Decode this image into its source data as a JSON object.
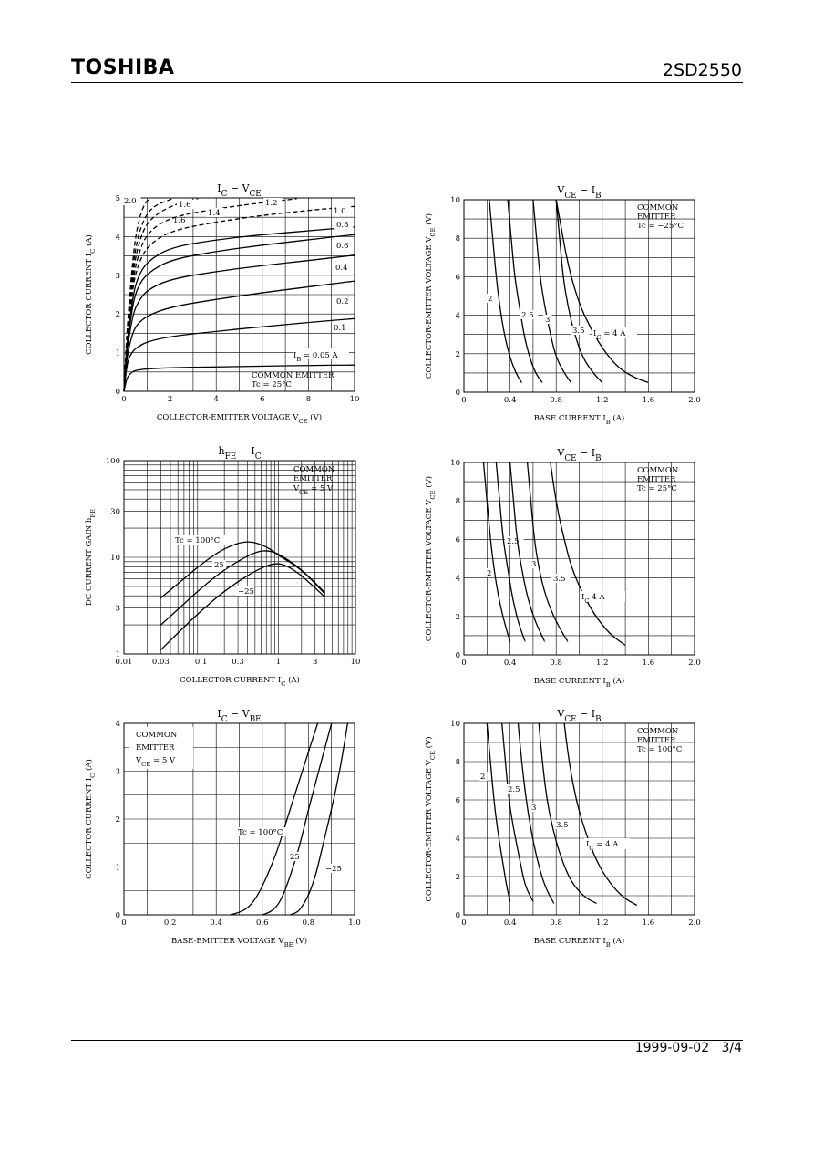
{
  "header": {
    "brand": "TOSHIBA",
    "part_number": "2SD2550"
  },
  "footer": {
    "date": "1999-09-02",
    "page": "3/4"
  },
  "chart_data": [
    {
      "id": "ic_vce",
      "type": "line",
      "title": {
        "main": "I",
        "sub": "C",
        "sep": " − ",
        "main2": "V",
        "sub2": "CE"
      },
      "xlabel": "COLLECTOR-EMITTER VOLTAGE   V",
      "xlabel_sub": "CE",
      "xlabel_unit": "(V)",
      "ylabel": "COLLECTOR CURRENT   I",
      "ylabel_sub": "C",
      "ylabel_unit": "(A)",
      "xlim": [
        0,
        10
      ],
      "ylim": [
        0,
        5
      ],
      "grid": true,
      "xticks": [
        0,
        2,
        4,
        6,
        8,
        10
      ],
      "yticks": [
        0,
        1,
        2,
        3,
        4,
        5
      ],
      "annotations": [
        "COMMON EMITTER",
        "Tc = 25°C"
      ],
      "ib_note": "I",
      "ib_note_sub": "B",
      "ib_note_rest": " = 0.05 A",
      "series": [
        {
          "name": "0.05",
          "x": [
            0,
            0.1,
            0.2,
            0.4,
            0.6,
            1,
            2,
            4,
            6,
            8,
            10
          ],
          "y": [
            0,
            0.28,
            0.42,
            0.52,
            0.55,
            0.58,
            0.61,
            0.63,
            0.65,
            0.67,
            0.68
          ]
        },
        {
          "name": "0.1",
          "x": [
            0,
            0.1,
            0.2,
            0.4,
            0.6,
            1,
            2,
            4,
            6,
            8,
            10
          ],
          "y": [
            0,
            0.55,
            0.85,
            1.05,
            1.15,
            1.28,
            1.42,
            1.55,
            1.67,
            1.78,
            1.88
          ]
        },
        {
          "name": "0.2",
          "x": [
            0,
            0.1,
            0.2,
            0.4,
            0.6,
            1,
            2,
            4,
            6,
            8,
            10
          ],
          "y": [
            0,
            0.7,
            1.1,
            1.55,
            1.75,
            1.95,
            2.18,
            2.38,
            2.55,
            2.7,
            2.85
          ]
        },
        {
          "name": "0.4",
          "x": [
            0,
            0.1,
            0.2,
            0.4,
            0.6,
            1,
            2,
            4,
            6,
            8,
            10
          ],
          "y": [
            0,
            0.85,
            1.35,
            2.0,
            2.3,
            2.62,
            2.9,
            3.1,
            3.25,
            3.38,
            3.52
          ]
        },
        {
          "name": "0.6",
          "x": [
            0,
            0.1,
            0.2,
            0.4,
            0.6,
            1,
            2,
            4,
            6,
            8,
            10
          ],
          "y": [
            0,
            0.95,
            1.5,
            2.3,
            2.7,
            3.05,
            3.4,
            3.62,
            3.78,
            3.92,
            4.05
          ]
        },
        {
          "name": "0.8",
          "x": [
            0,
            0.1,
            0.2,
            0.4,
            0.6,
            1,
            2,
            4,
            6,
            8,
            10
          ],
          "y": [
            0,
            1.0,
            1.6,
            2.5,
            2.95,
            3.35,
            3.72,
            3.92,
            4.05,
            4.15,
            4.25
          ]
        },
        {
          "name": "1.0",
          "dashed": true,
          "x": [
            0,
            0.1,
            0.2,
            0.4,
            0.6,
            1,
            2,
            4,
            6,
            8,
            10
          ],
          "y": [
            0,
            1.05,
            1.7,
            2.75,
            3.25,
            3.75,
            4.15,
            4.38,
            4.55,
            4.68,
            4.78
          ]
        },
        {
          "name": "1.2",
          "dashed": true,
          "x": [
            0,
            0.1,
            0.2,
            0.4,
            0.6,
            1,
            2,
            4,
            6,
            7.5
          ],
          "y": [
            0,
            1.1,
            1.8,
            2.9,
            3.5,
            4.1,
            4.5,
            4.72,
            4.88,
            4.98
          ]
        },
        {
          "name": "1.4",
          "dashed": true,
          "x": [
            0,
            0.1,
            0.2,
            0.4,
            0.6,
            1,
            2,
            3.2
          ],
          "y": [
            0,
            1.15,
            1.9,
            3.1,
            3.75,
            4.4,
            4.8,
            4.98
          ]
        },
        {
          "name": "1.6",
          "dashed": true,
          "x": [
            0,
            0.1,
            0.2,
            0.4,
            0.6,
            0.9,
            1.3,
            2.1
          ],
          "y": [
            0,
            1.2,
            2.0,
            3.3,
            4.0,
            4.5,
            4.8,
            4.98
          ]
        },
        {
          "name": "2.0",
          "dashed": true,
          "x": [
            0,
            0.1,
            0.2,
            0.35,
            0.5,
            0.7,
            0.9,
            1.1
          ],
          "y": [
            0,
            1.25,
            2.1,
            3.2,
            4.0,
            4.55,
            4.85,
            4.98
          ]
        }
      ]
    },
    {
      "id": "vce_ib_m25",
      "type": "line",
      "title": {
        "main": "V",
        "sub": "CE",
        "sep": " − ",
        "main2": "I",
        "sub2": "B"
      },
      "xlabel": "BASE CURRENT   I",
      "xlabel_sub": "B",
      "xlabel_unit": "(A)",
      "ylabel": "COLLECTOR-EMITTER VOLTAGE   V",
      "ylabel_sub": "CE",
      "ylabel_unit": "(V)",
      "xlim": [
        0,
        2.0
      ],
      "ylim": [
        0,
        10
      ],
      "grid": true,
      "xticks": [
        0,
        0.4,
        0.8,
        1.2,
        1.6,
        2.0
      ],
      "yticks": [
        0,
        2,
        4,
        6,
        8,
        10
      ],
      "annotations": [
        "COMMON",
        "EMITTER",
        "Tc = −25°C"
      ],
      "ic_note": "I",
      "ic_note_sub": "C",
      "ic_note_rest": " = 4 A",
      "series": [
        {
          "name": "2",
          "x": [
            0.22,
            0.25,
            0.28,
            0.31,
            0.35,
            0.4,
            0.45,
            0.5
          ],
          "y": [
            10,
            8,
            6,
            4.5,
            3,
            1.8,
            1.0,
            0.5
          ]
        },
        {
          "name": "2.5",
          "x": [
            0.38,
            0.41,
            0.44,
            0.48,
            0.52,
            0.57,
            0.62,
            0.68
          ],
          "y": [
            10,
            8,
            6,
            4.5,
            3,
            1.8,
            1.0,
            0.5
          ]
        },
        {
          "name": "3",
          "x": [
            0.6,
            0.63,
            0.66,
            0.7,
            0.75,
            0.8,
            0.87,
            0.93
          ],
          "y": [
            10,
            8,
            6,
            4.5,
            3,
            1.8,
            1.0,
            0.5
          ]
        },
        {
          "name": "3.5",
          "x": [
            0.8,
            0.83,
            0.86,
            0.9,
            0.96,
            1.03,
            1.12,
            1.2
          ],
          "y": [
            10,
            8,
            6,
            4.5,
            3,
            1.8,
            1.0,
            0.5
          ]
        },
        {
          "name": "4",
          "x": [
            0.8,
            0.84,
            0.88,
            0.93,
            1.0,
            1.1,
            1.22,
            1.35,
            1.5,
            1.6
          ],
          "y": [
            10,
            8.7,
            7.3,
            6,
            4.6,
            3.3,
            2.1,
            1.2,
            0.7,
            0.5
          ]
        }
      ]
    },
    {
      "id": "hfe_ic",
      "type": "line",
      "title": {
        "main": "h",
        "sub": "FE",
        "sep": " − ",
        "main2": "I",
        "sub2": "C"
      },
      "xlabel": "COLLECTOR CURRENT   I",
      "xlabel_sub": "C",
      "xlabel_unit": "(A)",
      "ylabel": "DC CURRENT GAIN   h",
      "ylabel_sub": "FE",
      "ylabel_unit": "",
      "xscale": "log",
      "yscale": "log",
      "xlim": [
        0.01,
        10
      ],
      "ylim": [
        1,
        100
      ],
      "grid": true,
      "xticks": [
        0.01,
        0.03,
        0.1,
        0.3,
        1,
        3,
        10
      ],
      "xtick_labels": [
        "0.01",
        "0.03",
        "0.1",
        "0.3",
        "1",
        "3",
        "10"
      ],
      "yticks": [
        1,
        3,
        10,
        30,
        100
      ],
      "annotations": [
        "COMMON",
        "EMITTER",
        "V",
        "CE",
        " = 5 V"
      ],
      "series": [
        {
          "name": "Tc = 100°C",
          "x": [
            0.03,
            0.06,
            0.1,
            0.2,
            0.4,
            0.7,
            1.0,
            2,
            4
          ],
          "y": [
            3.8,
            6,
            8.5,
            12.5,
            15,
            13,
            10.5,
            7.5,
            4.2
          ]
        },
        {
          "name": "25",
          "x": [
            0.03,
            0.06,
            0.1,
            0.2,
            0.5,
            0.8,
            1.2,
            2,
            4
          ],
          "y": [
            2.0,
            3.3,
            4.8,
            7.5,
            11.5,
            11.8,
            10,
            7.5,
            4.3
          ]
        },
        {
          "name": "−25",
          "x": [
            0.03,
            0.06,
            0.1,
            0.2,
            0.5,
            0.9,
            1.3,
            2,
            4
          ],
          "y": [
            1.1,
            1.9,
            2.8,
            4.5,
            7.3,
            8.8,
            8.2,
            6.5,
            3.9
          ]
        }
      ]
    },
    {
      "id": "vce_ib_25",
      "type": "line",
      "title": {
        "main": "V",
        "sub": "CE",
        "sep": " − ",
        "main2": "I",
        "sub2": "B"
      },
      "xlabel": "BASE CURRENT   I",
      "xlabel_sub": "B",
      "xlabel_unit": "(A)",
      "ylabel": "COLLECTOR-EMITTER VOLTAGE   V",
      "ylabel_sub": "CE",
      "ylabel_unit": "(V)",
      "xlim": [
        0,
        2.0
      ],
      "ylim": [
        0,
        10
      ],
      "grid": true,
      "xticks": [
        0,
        0.4,
        0.8,
        1.2,
        1.6,
        2.0
      ],
      "yticks": [
        0,
        2,
        4,
        6,
        8,
        10
      ],
      "annotations": [
        "COMMON",
        "EMITTER",
        "Tc = 25°C"
      ],
      "ic_note": "I",
      "ic_note_sub": "C",
      "ic_note_rest": "    4 A",
      "series": [
        {
          "name": "2",
          "x": [
            0.17,
            0.2,
            0.23,
            0.26,
            0.3,
            0.35,
            0.4
          ],
          "y": [
            10,
            8,
            6,
            4.5,
            3,
            1.7,
            0.7
          ]
        },
        {
          "name": "2.5",
          "x": [
            0.28,
            0.31,
            0.34,
            0.38,
            0.42,
            0.47,
            0.53
          ],
          "y": [
            10,
            8,
            6,
            4.5,
            3,
            1.7,
            0.7
          ]
        },
        {
          "name": "3",
          "x": [
            0.4,
            0.43,
            0.46,
            0.5,
            0.55,
            0.62,
            0.7
          ],
          "y": [
            10,
            8,
            6,
            4.5,
            3,
            1.7,
            0.7
          ]
        },
        {
          "name": "3.5",
          "x": [
            0.55,
            0.58,
            0.61,
            0.65,
            0.71,
            0.8,
            0.9
          ],
          "y": [
            10,
            8,
            6,
            4.5,
            3,
            1.7,
            0.7
          ]
        },
        {
          "name": "4",
          "x": [
            0.75,
            0.78,
            0.82,
            0.87,
            0.93,
            1.02,
            1.13,
            1.26,
            1.4
          ],
          "y": [
            10,
            8.7,
            7.3,
            6,
            4.6,
            3.3,
            2.1,
            1.1,
            0.5
          ]
        }
      ]
    },
    {
      "id": "ic_vbe",
      "type": "line",
      "title": {
        "main": "I",
        "sub": "C",
        "sep": " − ",
        "main2": "V",
        "sub2": "BE"
      },
      "xlabel": "BASE-EMITTER VOLTAGE   V",
      "xlabel_sub": "BE",
      "xlabel_unit": "(V)",
      "ylabel": "COLLECTOR CURRENT   I",
      "ylabel_sub": "C",
      "ylabel_unit": "(A)",
      "xlim": [
        0,
        1.0
      ],
      "ylim": [
        0,
        4
      ],
      "grid": true,
      "xticks": [
        0,
        0.2,
        0.4,
        0.6,
        0.8,
        1.0
      ],
      "yticks": [
        0,
        1,
        2,
        3,
        4
      ],
      "annotations": [
        "COMMON",
        "EMITTER",
        "V",
        "CE",
        " = 5 V"
      ],
      "series": [
        {
          "name": "Tc = 100°C",
          "x": [
            0.46,
            0.5,
            0.54,
            0.58,
            0.62,
            0.67,
            0.72,
            0.78,
            0.84
          ],
          "y": [
            0,
            0.05,
            0.15,
            0.4,
            0.8,
            1.4,
            2.2,
            3.1,
            4
          ]
        },
        {
          "name": "25",
          "x": [
            0.6,
            0.63,
            0.66,
            0.69,
            0.72,
            0.76,
            0.8,
            0.85,
            0.9
          ],
          "y": [
            0,
            0.05,
            0.15,
            0.4,
            0.8,
            1.4,
            2.2,
            3.1,
            4
          ]
        },
        {
          "name": "−25",
          "x": [
            0.72,
            0.75,
            0.77,
            0.8,
            0.83,
            0.86,
            0.9,
            0.94,
            0.97
          ],
          "y": [
            0,
            0.05,
            0.15,
            0.4,
            0.8,
            1.4,
            2.2,
            3.1,
            4
          ]
        }
      ]
    },
    {
      "id": "vce_ib_100",
      "type": "line",
      "title": {
        "main": "V",
        "sub": "CE",
        "sep": " − ",
        "main2": "I",
        "sub2": "B"
      },
      "xlabel": "BASE CURRENT   I",
      "xlabel_sub": "B",
      "xlabel_unit": "(A)",
      "ylabel": "COLLECTOR-EMITTER VOLTAGE   V",
      "ylabel_sub": "CE",
      "ylabel_unit": "(V)",
      "xlim": [
        0,
        2.0
      ],
      "ylim": [
        0,
        10
      ],
      "grid": true,
      "xticks": [
        0,
        0.4,
        0.8,
        1.2,
        1.6,
        2.0
      ],
      "yticks": [
        0,
        2,
        4,
        6,
        8,
        10
      ],
      "annotations": [
        "COMMON",
        "EMITTER",
        "Tc = 100°C"
      ],
      "ic_note": "I",
      "ic_note_sub": "C",
      "ic_note_rest": " = 4 A",
      "series": [
        {
          "name": "2",
          "x": [
            0.2,
            0.23,
            0.26,
            0.29,
            0.33,
            0.37,
            0.4
          ],
          "y": [
            10,
            8,
            6,
            4.5,
            3,
            1.5,
            0.7
          ]
        },
        {
          "name": "2.5",
          "x": [
            0.33,
            0.36,
            0.39,
            0.43,
            0.48,
            0.53,
            0.6
          ],
          "y": [
            10,
            8,
            6,
            4.5,
            3,
            1.5,
            0.7
          ]
        },
        {
          "name": "3",
          "x": [
            0.47,
            0.5,
            0.54,
            0.58,
            0.63,
            0.7,
            0.78
          ],
          "y": [
            10,
            8,
            6,
            4.5,
            3,
            1.5,
            0.6
          ]
        },
        {
          "name": "3.5",
          "x": [
            0.65,
            0.68,
            0.72,
            0.77,
            0.84,
            0.93,
            1.05,
            1.15
          ],
          "y": [
            10,
            8,
            6,
            4.5,
            3,
            1.7,
            0.9,
            0.6
          ]
        },
        {
          "name": "4",
          "x": [
            0.87,
            0.9,
            0.94,
            0.99,
            1.06,
            1.15,
            1.26,
            1.38,
            1.5
          ],
          "y": [
            10,
            8.5,
            7,
            5.6,
            4.2,
            2.8,
            1.7,
            0.9,
            0.5
          ]
        }
      ]
    }
  ]
}
